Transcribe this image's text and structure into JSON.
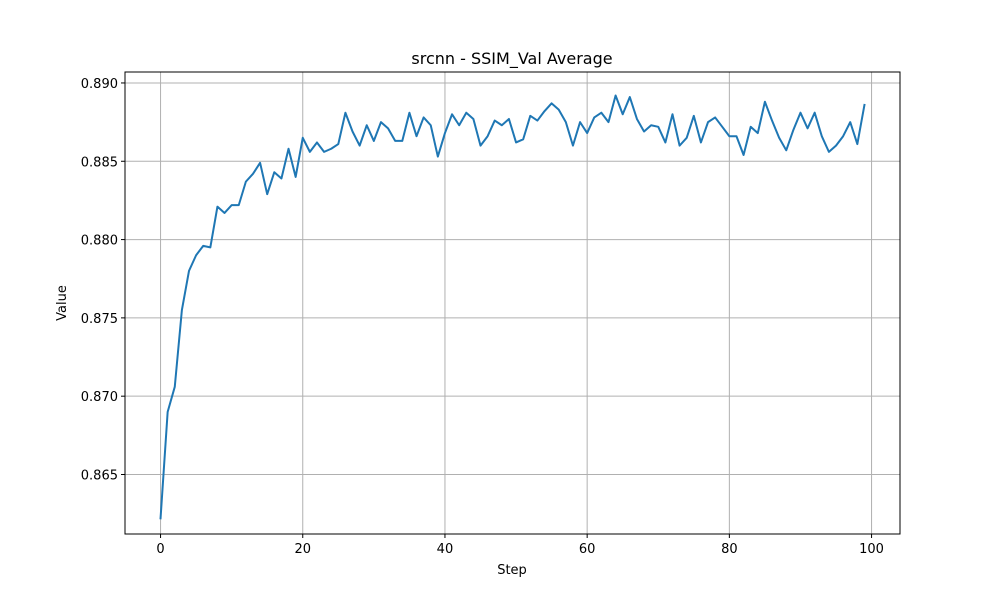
{
  "chart_data": {
    "type": "line",
    "title": "srcnn - SSIM_Val Average",
    "xlabel": "Step",
    "ylabel": "Value",
    "xlim": [
      -5,
      104
    ],
    "ylim": [
      0.8612,
      0.8907
    ],
    "xticks": [
      0,
      20,
      40,
      60,
      80,
      100
    ],
    "xtick_labels": [
      "0",
      "20",
      "40",
      "60",
      "80",
      "100"
    ],
    "yticks": [
      0.865,
      0.87,
      0.875,
      0.88,
      0.885,
      0.89
    ],
    "ytick_labels": [
      "0.865",
      "0.870",
      "0.875",
      "0.880",
      "0.885",
      "0.890"
    ],
    "grid": true,
    "series": [
      {
        "color": "#1f77b4",
        "x": [
          0,
          1,
          2,
          3,
          4,
          5,
          6,
          7,
          8,
          9,
          10,
          11,
          12,
          13,
          14,
          15,
          16,
          17,
          18,
          19,
          20,
          21,
          22,
          23,
          24,
          25,
          26,
          27,
          28,
          29,
          30,
          31,
          32,
          33,
          34,
          35,
          36,
          37,
          38,
          39,
          40,
          41,
          42,
          43,
          44,
          45,
          46,
          47,
          48,
          49,
          50,
          51,
          52,
          53,
          54,
          55,
          56,
          57,
          58,
          59,
          60,
          61,
          62,
          63,
          64,
          65,
          66,
          67,
          68,
          69,
          70,
          71,
          72,
          73,
          74,
          75,
          76,
          77,
          78,
          79,
          80,
          81,
          82,
          83,
          84,
          85,
          86,
          87,
          88,
          89,
          90,
          91,
          92,
          93,
          94,
          95,
          96,
          97,
          98,
          99
        ],
        "values": [
          0.8622,
          0.869,
          0.8706,
          0.8755,
          0.878,
          0.879,
          0.8796,
          0.8795,
          0.8821,
          0.8817,
          0.8822,
          0.8822,
          0.8837,
          0.8842,
          0.8849,
          0.8829,
          0.8843,
          0.8839,
          0.8858,
          0.884,
          0.8865,
          0.8856,
          0.8862,
          0.8856,
          0.8858,
          0.8861,
          0.8881,
          0.8869,
          0.886,
          0.8873,
          0.8863,
          0.8875,
          0.8871,
          0.8863,
          0.8863,
          0.8881,
          0.8866,
          0.8878,
          0.8873,
          0.8853,
          0.8868,
          0.888,
          0.8873,
          0.8881,
          0.8877,
          0.886,
          0.8866,
          0.8876,
          0.8873,
          0.8877,
          0.8862,
          0.8864,
          0.8879,
          0.8876,
          0.8882,
          0.8887,
          0.8883,
          0.8875,
          0.886,
          0.8875,
          0.8868,
          0.8878,
          0.8881,
          0.8875,
          0.8892,
          0.888,
          0.8891,
          0.8877,
          0.8869,
          0.8873,
          0.8872,
          0.8862,
          0.888,
          0.886,
          0.8865,
          0.8879,
          0.8862,
          0.8875,
          0.8878,
          0.8872,
          0.8866,
          0.8866,
          0.8854,
          0.8872,
          0.8868,
          0.8888,
          0.8876,
          0.8865,
          0.8857,
          0.887,
          0.8881,
          0.8871,
          0.8881,
          0.8866,
          0.8856,
          0.886,
          0.8866,
          0.8875,
          0.8861,
          0.8886
        ]
      }
    ]
  }
}
